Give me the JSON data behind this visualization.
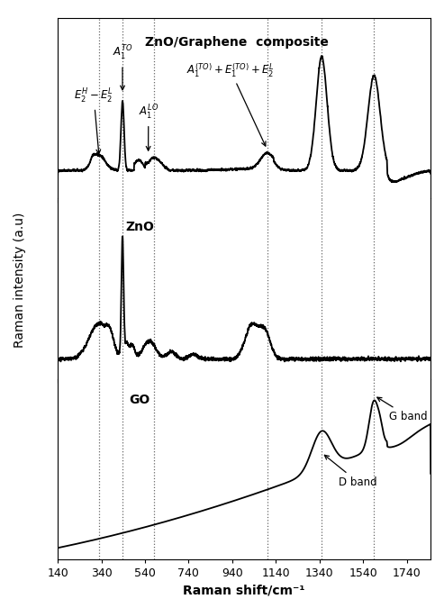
{
  "xlim": [
    140,
    1850
  ],
  "xlabel": "Raman shift/cm⁻¹",
  "ylabel": "Raman intensity (a.u)",
  "xticks": [
    140,
    340,
    540,
    740,
    940,
    1140,
    1340,
    1540,
    1740
  ],
  "xticklabels": [
    "140",
    "340",
    "540",
    "740",
    "940",
    "1140",
    "1340",
    "1540",
    "1740"
  ],
  "dashed_lines": [
    330,
    437,
    583,
    1100,
    1350,
    1590
  ],
  "panel_labels": [
    "ZnO/Graphene  composite",
    "ZnO",
    "GO"
  ],
  "background_color": "#ffffff",
  "line_color": "#000000"
}
